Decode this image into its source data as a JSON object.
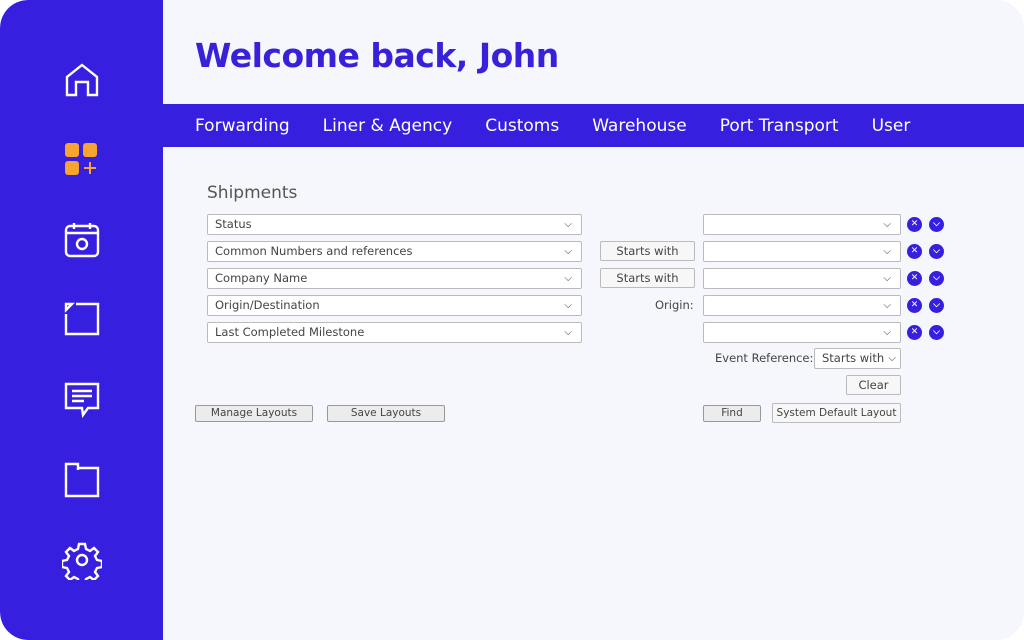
{
  "colors": {
    "brand": "#371fdf",
    "accent": "#f7a531",
    "background": "#f6f6fd"
  },
  "sidebar": {
    "icons": [
      "home-icon",
      "add-widget-icon",
      "calendar-icon",
      "document-icon",
      "message-icon",
      "folder-icon",
      "gear-icon"
    ]
  },
  "header": {
    "title": "Welcome back, John"
  },
  "nav": {
    "items": [
      "Forwarding",
      "Liner & Agency",
      "Customs",
      "Warehouse",
      "Port Transport",
      "User"
    ]
  },
  "form": {
    "section_title": "Shipments",
    "fields": [
      "Status",
      "Common Numbers and references",
      "Company Name",
      "Origin/Destination",
      "Last Completed Milestone"
    ],
    "starts_with": "Starts with",
    "origin_label": "Origin:",
    "event_reference_label": "Event Reference:",
    "event_reference_value": "Starts with",
    "clear": "Clear",
    "find": "Find",
    "system_default_layout": "System Default Layout",
    "manage_layouts": "Manage Layouts",
    "save_layouts": "Save Layouts"
  }
}
